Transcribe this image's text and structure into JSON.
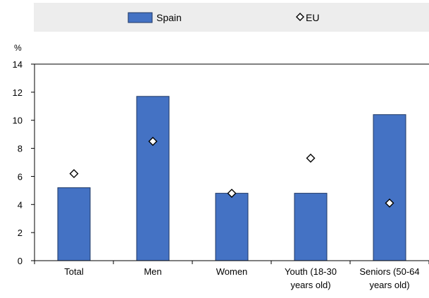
{
  "chart_data": {
    "type": "bar",
    "ylabel": "%",
    "ylim": [
      0,
      14
    ],
    "yticks": [
      0,
      2,
      4,
      6,
      8,
      10,
      12,
      14
    ],
    "categories": [
      [
        "Total"
      ],
      [
        "Men"
      ],
      [
        "Women"
      ],
      [
        "Youth (18-30",
        "years old)"
      ],
      [
        "Seniors (50-64",
        "years old)"
      ]
    ],
    "series": [
      {
        "name": "Spain",
        "kind": "bar",
        "values": [
          5.2,
          11.7,
          4.8,
          4.8,
          10.4
        ]
      },
      {
        "name": "EU",
        "kind": "marker",
        "values": [
          6.2,
          8.5,
          4.8,
          7.3,
          4.1
        ]
      }
    ],
    "grid": false,
    "legend": "top",
    "colors": {
      "bar_fill": "#4472C4",
      "bar_stroke": "#1F3864",
      "marker_fill": "#FFFFFF",
      "marker_stroke": "#000000",
      "legend_background": "#EDEDED"
    }
  }
}
